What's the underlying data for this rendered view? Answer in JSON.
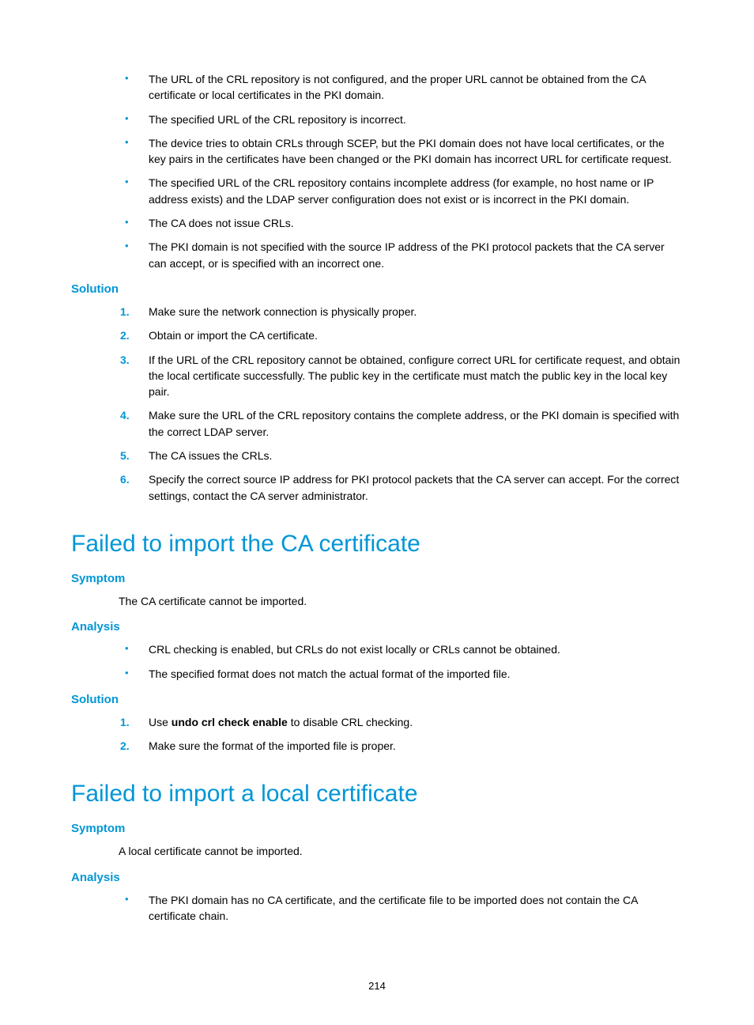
{
  "colors": {
    "accent": "#0096d6",
    "text": "#000000",
    "background": "#ffffff"
  },
  "typography": {
    "body_font": "Arial",
    "body_size_pt": 10.5,
    "h1_size_pt": 22,
    "h1_weight": 300,
    "h2_size_pt": 11,
    "h2_weight": 700
  },
  "section_top": {
    "bullets": [
      "The URL of the CRL repository is not configured, and the proper URL cannot be obtained from the CA certificate or local certificates in the PKI domain.",
      "The specified URL of the CRL repository is incorrect.",
      "The device tries to obtain CRLs through SCEP, but the PKI domain does not have local certificates, or the key pairs in the certificates have been changed or the PKI domain has incorrect URL for certificate request.",
      "The specified URL of the CRL repository contains incomplete address (for example, no host name or IP address exists) and the LDAP server configuration does not exist or is incorrect in the PKI domain.",
      "The CA does not issue CRLs.",
      "The PKI domain is not specified with the source IP address of the PKI protocol packets that the CA server can accept, or is specified with an incorrect one."
    ],
    "solution_heading": "Solution",
    "solution_steps": [
      "Make sure the network connection is physically proper.",
      "Obtain or import the CA certificate.",
      "If the URL of the CRL repository cannot be obtained, configure correct URL for certificate request, and obtain the local certificate successfully. The public key in the certificate must match the public key in the local key pair.",
      "Make sure the URL of the CRL repository contains the complete address, or the PKI domain is specified with the correct LDAP server.",
      "The CA issues the CRLs.",
      "Specify the correct source IP address for PKI protocol packets that the CA server can accept. For the correct settings, contact the CA server administrator."
    ]
  },
  "section_ca": {
    "title": "Failed to import the CA certificate",
    "symptom_heading": "Symptom",
    "symptom_text": "The CA certificate cannot be imported.",
    "analysis_heading": "Analysis",
    "analysis_bullets": [
      "CRL checking is enabled, but CRLs do not exist locally or CRLs cannot be obtained.",
      "The specified format does not match the actual format of the imported file."
    ],
    "solution_heading": "Solution",
    "solution_pre_1": "Use ",
    "solution_bold_1": "undo crl check enable",
    "solution_post_1": " to disable CRL checking.",
    "solution_step_2": "Make sure the format of the imported file is proper."
  },
  "section_local": {
    "title": "Failed to import a local certificate",
    "symptom_heading": "Symptom",
    "symptom_text": "A local certificate cannot be imported.",
    "analysis_heading": "Analysis",
    "analysis_bullets": [
      "The PKI domain has no CA certificate, and the certificate file to be imported does not contain the CA certificate chain."
    ]
  },
  "page_number": "214"
}
